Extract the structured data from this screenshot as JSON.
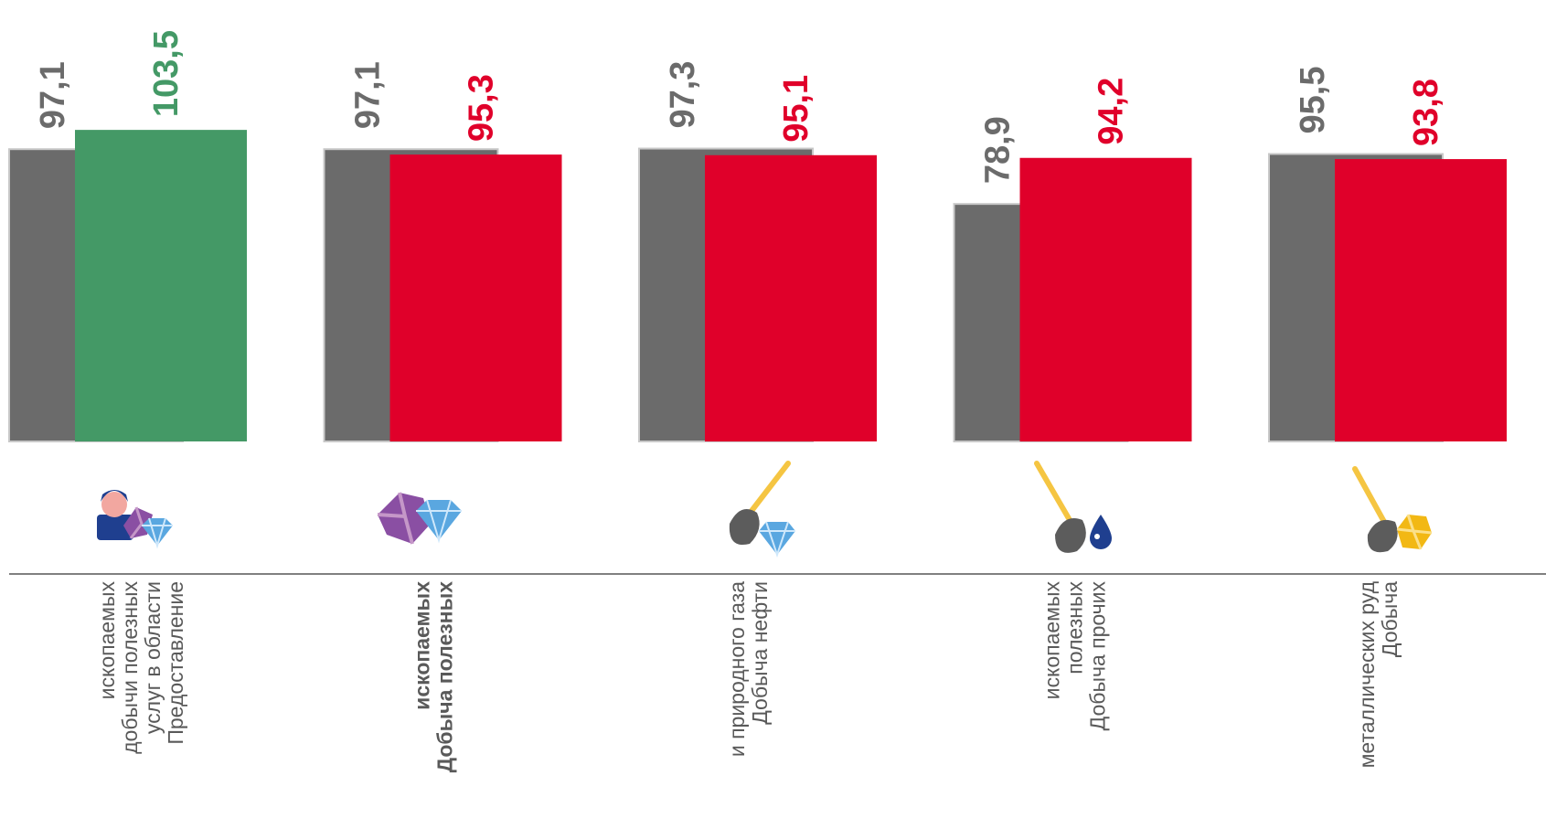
{
  "chart_data": {
    "type": "bar",
    "title": "",
    "xlabel": "",
    "ylabel": "",
    "categories": [
      {
        "lines": [
          "Предоставление",
          "услуг в области",
          "добычи полезных",
          "ископаемых"
        ],
        "bold": false,
        "icon": "miner-with-gems-icon"
      },
      {
        "lines": [
          "Добыча полезных",
          "ископаемых"
        ],
        "bold": true,
        "icon": "gems-icon"
      },
      {
        "lines": [
          "Добыча нефти",
          "и природного газа"
        ],
        "bold": false,
        "icon": "shovel-diamond-icon"
      },
      {
        "lines": [
          "Добыча прочих",
          "полезных",
          "ископаемых"
        ],
        "bold": false,
        "icon": "shovel-oil-drop-icon"
      },
      {
        "lines": [
          "Добыча",
          "металлических руд"
        ],
        "bold": false,
        "icon": "shovel-gold-ore-icon"
      }
    ],
    "series": [
      {
        "values": [
          97.1,
          97.1,
          97.3,
          78.9,
          95.5
        ],
        "labels": [
          "97,1",
          "97,1",
          "97,3",
          "78,9",
          "95,5"
        ],
        "color": "#6b6b6b"
      },
      {
        "values": [
          103.5,
          95.3,
          95.1,
          94.2,
          93.8
        ],
        "labels": [
          "103,5",
          "95,3",
          "95,1",
          "94,2",
          "93,8"
        ],
        "colors": [
          "#449966",
          "#e0002a",
          "#e0002a",
          "#e0002a",
          "#e0002a"
        ]
      }
    ],
    "grid": false,
    "legend": "none"
  }
}
